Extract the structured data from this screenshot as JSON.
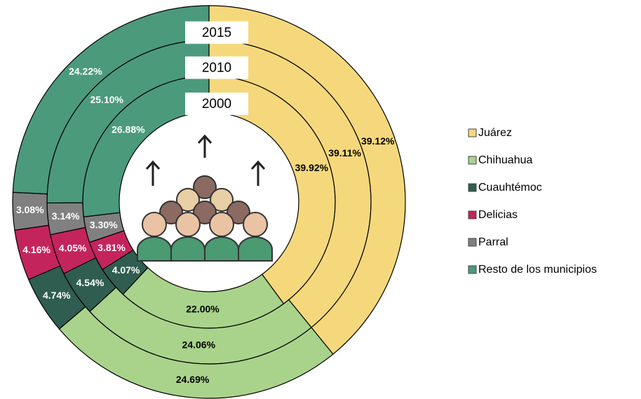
{
  "chart_data": {
    "type": "donut",
    "categories": [
      "Juárez",
      "Chihuahua",
      "Cuauhtémoc",
      "Delicias",
      "Parral",
      "Resto de los municipios"
    ],
    "colors": [
      "#f6d87c",
      "#a9d38b",
      "#2f5d4f",
      "#c4245c",
      "#808080",
      "#4b9a7c"
    ],
    "series": [
      {
        "name": "2000",
        "values": [
          39.92,
          22.0,
          4.07,
          3.81,
          3.3,
          26.88
        ],
        "value_labels": [
          "39.92%",
          "22.00%",
          "4.07%",
          "3.81%",
          "3.30%",
          "26.88%"
        ]
      },
      {
        "name": "2010",
        "values": [
          39.11,
          24.06,
          4.54,
          4.05,
          3.14,
          25.1
        ],
        "value_labels": [
          "39.11%",
          "24.06%",
          "4.54%",
          "4.05%",
          "3.14%",
          "25.10%"
        ]
      },
      {
        "name": "2015",
        "values": [
          39.12,
          24.69,
          4.74,
          4.16,
          3.08,
          24.22
        ],
        "value_labels": [
          "39.12%",
          "24.69%",
          "4.74%",
          "4.16%",
          "3.08%",
          "24.22%"
        ]
      }
    ]
  }
}
